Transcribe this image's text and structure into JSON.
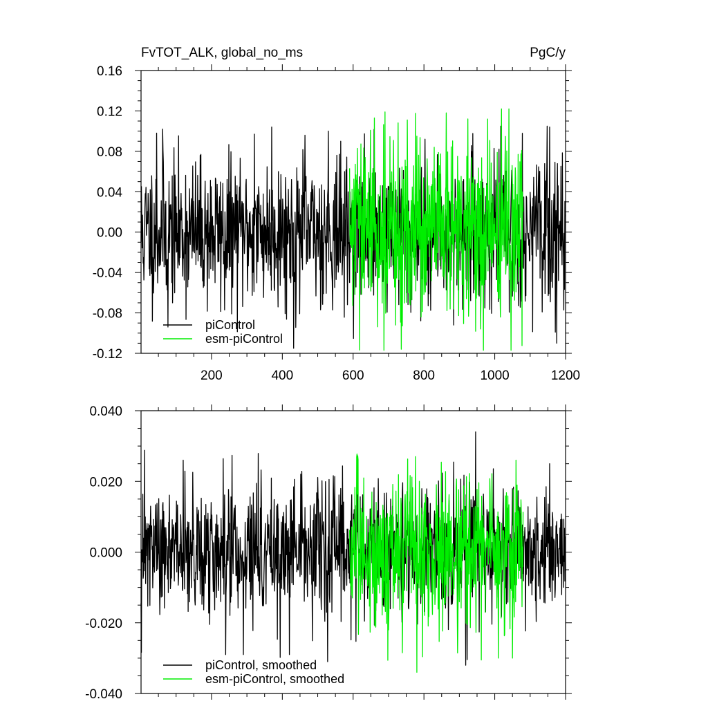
{
  "colors": {
    "picontrol": "#000000",
    "esm_picontrol": "#00ee00"
  },
  "chart_data": [
    {
      "type": "line",
      "title_left": "FvTOT_ALK, global_no_ms",
      "title_right": "PgC/y",
      "xlim": [
        1,
        1200
      ],
      "ylim": [
        -0.12,
        0.16
      ],
      "x_ticks": [
        200,
        400,
        600,
        800,
        1000,
        1200
      ],
      "x_tick_labels": [
        "200",
        "400",
        "600",
        "800",
        "1000",
        "1200"
      ],
      "y_ticks": [
        -0.12,
        -0.08,
        -0.04,
        0.0,
        0.04,
        0.08,
        0.12,
        0.16
      ],
      "y_tick_labels": [
        "-0.12",
        "-0.08",
        "-0.04",
        "0.00",
        "0.04",
        "0.08",
        "0.12",
        "0.16"
      ],
      "legend": "bottom-left",
      "series": [
        {
          "name": "piControl",
          "color": "#000000",
          "x_range": [
            1,
            1200
          ],
          "amplitude": 0.035,
          "clip": [
            -0.115,
            0.105
          ],
          "seed": 11,
          "peaks": [
            [
              45,
              0.098
            ],
            [
              62,
              0.102
            ],
            [
              77,
              -0.094
            ],
            [
              237,
              -0.077
            ],
            [
              321,
              0.097
            ],
            [
              370,
              0.104
            ],
            [
              432,
              -0.115
            ],
            [
              464,
              0.096
            ],
            [
              530,
              0.1
            ],
            [
              1175,
              -0.11
            ],
            [
              1155,
              0.104
            ]
          ]
        },
        {
          "name": "esm-piControl",
          "color": "#00ee00",
          "x_range": [
            590,
            1080
          ],
          "amplitude": 0.045,
          "clip": [
            -0.117,
            0.122
          ],
          "seed": 29,
          "peaks": [
            [
              660,
              0.113
            ],
            [
              968,
              -0.117
            ],
            [
              980,
              0.112
            ],
            [
              1040,
              0.122
            ],
            [
              612,
              0.083
            ],
            [
              720,
              -0.092
            ]
          ]
        }
      ]
    },
    {
      "type": "line",
      "xlim": [
        1,
        1200
      ],
      "ylim": [
        -0.04,
        0.04
      ],
      "x_ticks": [
        200,
        400,
        600,
        800,
        1000,
        1200
      ],
      "y_ticks": [
        -0.04,
        -0.02,
        0.0,
        0.02,
        0.04
      ],
      "y_tick_labels": [
        "-0.040",
        "-0.020",
        "0.000",
        "0.020",
        "0.040"
      ],
      "legend": "bottom-left",
      "series": [
        {
          "name": "piControl, smoothed",
          "color": "#000000",
          "x_range": [
            1,
            1200
          ],
          "amplitude": 0.009,
          "clip": [
            -0.032,
            0.034
          ],
          "seed": 47,
          "peaks": [
            [
              120,
              0.026
            ],
            [
              240,
              -0.029
            ],
            [
              290,
              -0.029
            ],
            [
              420,
              -0.029
            ],
            [
              528,
              -0.031
            ],
            [
              565,
              0.018
            ],
            [
              918,
              -0.032
            ],
            [
              946,
              0.034
            ],
            [
              1155,
              0.025
            ]
          ]
        },
        {
          "name": "esm-piControl, smoothed",
          "color": "#00ee00",
          "x_range": [
            590,
            1080
          ],
          "amplitude": 0.011,
          "clip": [
            -0.034,
            0.028
          ],
          "seed": 83,
          "peaks": [
            [
              780,
              -0.034
            ],
            [
              776,
              0.027
            ],
            [
              1050,
              -0.03
            ],
            [
              1060,
              0.026
            ],
            [
              1010,
              -0.03
            ],
            [
              700,
              -0.022
            ]
          ]
        }
      ]
    }
  ]
}
